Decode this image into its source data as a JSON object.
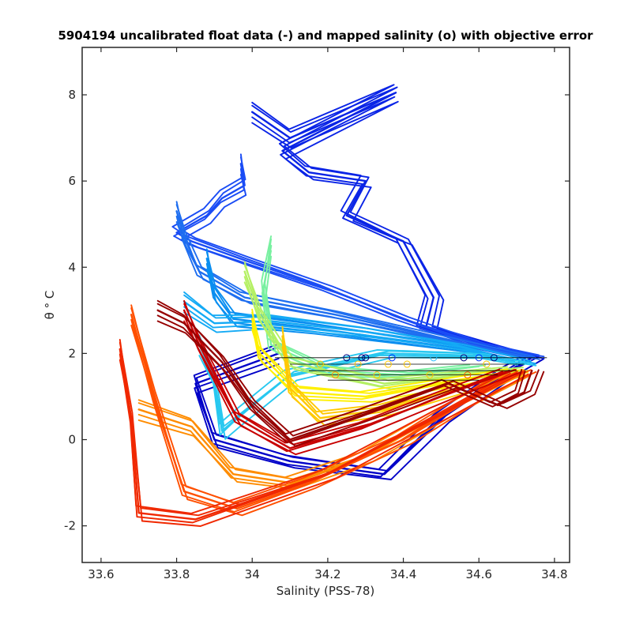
{
  "chart_data": {
    "type": "line",
    "title": "5904194 uncalibrated float data (-) and mapped salinity (o) with objective error",
    "xlabel": "Salinity (PSS-78)",
    "ylabel": "θ ° C",
    "xlim": [
      33.55,
      34.84
    ],
    "ylim": [
      -2.85,
      9.1
    ],
    "x_ticks": [
      "33.6",
      "33.8",
      "34",
      "34.2",
      "34.4",
      "34.6",
      "34.8"
    ],
    "x_tick_values": [
      33.6,
      33.8,
      34.0,
      34.2,
      34.4,
      34.6,
      34.8
    ],
    "y_ticks": [
      "-2",
      "0",
      "2",
      "4",
      "6",
      "8"
    ],
    "y_tick_values": [
      -2,
      0,
      2,
      4,
      6,
      8
    ],
    "grid": false,
    "legend": "none",
    "series": [
      {
        "color": "#0000c8",
        "points": [
          [
            34.07,
            2.0
          ],
          [
            33.85,
            1.3
          ],
          [
            33.9,
            0.0
          ],
          [
            34.1,
            -0.5
          ],
          [
            34.35,
            -0.8
          ],
          [
            34.5,
            0.5
          ],
          [
            34.68,
            1.6
          ],
          [
            34.74,
            1.9
          ]
        ]
      },
      {
        "color": "#0a24e6",
        "points": [
          [
            34.0,
            7.6
          ],
          [
            34.1,
            7.0
          ],
          [
            34.38,
            8.05
          ],
          [
            34.08,
            6.7
          ],
          [
            34.15,
            6.2
          ],
          [
            34.3,
            6.0
          ],
          [
            34.25,
            5.2
          ],
          [
            34.35,
            4.8
          ],
          [
            34.4,
            4.6
          ],
          [
            34.48,
            3.3
          ],
          [
            34.46,
            2.6
          ],
          [
            34.74,
            1.9
          ]
        ]
      },
      {
        "color": "#1a4cf5",
        "points": [
          [
            33.97,
            6.4
          ],
          [
            33.98,
            5.9
          ],
          [
            33.92,
            5.6
          ],
          [
            33.88,
            5.2
          ],
          [
            33.8,
            4.8
          ],
          [
            33.84,
            4.6
          ],
          [
            34.0,
            4.1
          ],
          [
            34.2,
            3.5
          ],
          [
            34.4,
            2.8
          ],
          [
            34.6,
            2.2
          ],
          [
            34.74,
            1.95
          ]
        ]
      },
      {
        "color": "#1e6ef0",
        "points": [
          [
            33.8,
            5.3
          ],
          [
            33.82,
            4.7
          ],
          [
            33.86,
            3.9
          ],
          [
            33.98,
            3.3
          ],
          [
            34.22,
            2.9
          ],
          [
            34.5,
            2.35
          ],
          [
            34.73,
            1.9
          ]
        ]
      },
      {
        "color": "#0a8ef0",
        "points": [
          [
            33.88,
            4.2
          ],
          [
            33.9,
            3.4
          ],
          [
            33.95,
            2.8
          ],
          [
            34.15,
            2.6
          ],
          [
            34.4,
            2.3
          ],
          [
            34.6,
            2.05
          ],
          [
            34.72,
            1.8
          ]
        ]
      },
      {
        "color": "#14aaf5",
        "points": [
          [
            33.82,
            3.2
          ],
          [
            33.9,
            2.7
          ],
          [
            34.05,
            2.75
          ],
          [
            34.3,
            2.5
          ],
          [
            34.55,
            2.15
          ],
          [
            34.72,
            1.8
          ]
        ]
      },
      {
        "color": "#28c8f0",
        "points": [
          [
            33.86,
            2.2
          ],
          [
            33.9,
            1.4
          ],
          [
            33.92,
            0.2
          ],
          [
            33.96,
            0.5
          ],
          [
            34.1,
            1.5
          ],
          [
            34.35,
            2.0
          ],
          [
            34.6,
            1.95
          ],
          [
            34.72,
            1.75
          ]
        ]
      },
      {
        "color": "#78f0a0",
        "points": [
          [
            34.05,
            4.5
          ],
          [
            34.03,
            3.5
          ],
          [
            34.05,
            2.2
          ],
          [
            34.2,
            1.6
          ],
          [
            34.4,
            1.5
          ],
          [
            34.6,
            1.7
          ]
        ]
      },
      {
        "color": "#b4f064",
        "points": [
          [
            33.98,
            3.9
          ],
          [
            34.02,
            2.9
          ],
          [
            34.1,
            1.8
          ],
          [
            34.35,
            1.3
          ],
          [
            34.55,
            1.5
          ],
          [
            34.7,
            1.65
          ]
        ]
      },
      {
        "color": "#fff000",
        "points": [
          [
            34.0,
            2.8
          ],
          [
            34.02,
            2.0
          ],
          [
            34.12,
            1.1
          ],
          [
            34.3,
            1.0
          ],
          [
            34.5,
            1.3
          ],
          [
            34.7,
            1.6
          ]
        ]
      },
      {
        "color": "#ffc800",
        "points": [
          [
            34.08,
            2.4
          ],
          [
            34.1,
            1.2
          ],
          [
            34.18,
            0.5
          ],
          [
            34.35,
            0.7
          ],
          [
            34.55,
            1.2
          ],
          [
            34.7,
            1.55
          ]
        ]
      },
      {
        "color": "#ff8c00",
        "points": [
          [
            33.7,
            0.7
          ],
          [
            33.84,
            0.3
          ],
          [
            33.95,
            -0.8
          ],
          [
            34.1,
            -1.0
          ],
          [
            34.3,
            -0.4
          ],
          [
            34.5,
            0.6
          ],
          [
            34.7,
            1.5
          ]
        ]
      },
      {
        "color": "#ff5000",
        "points": [
          [
            33.68,
            2.9
          ],
          [
            33.74,
            1.0
          ],
          [
            33.82,
            -1.2
          ],
          [
            33.96,
            -1.6
          ],
          [
            34.15,
            -1.0
          ],
          [
            34.4,
            0.0
          ],
          [
            34.62,
            1.2
          ],
          [
            34.72,
            1.6
          ]
        ]
      },
      {
        "color": "#f02800",
        "points": [
          [
            33.65,
            2.1
          ],
          [
            33.68,
            0.5
          ],
          [
            33.7,
            -1.7
          ],
          [
            33.85,
            -1.85
          ],
          [
            34.0,
            -1.4
          ],
          [
            34.2,
            -0.8
          ],
          [
            34.5,
            0.6
          ],
          [
            34.7,
            1.55
          ]
        ]
      },
      {
        "color": "#c80000",
        "points": [
          [
            33.82,
            3.0
          ],
          [
            33.86,
            2.2
          ],
          [
            33.96,
            0.5
          ],
          [
            34.1,
            -0.2
          ],
          [
            34.3,
            0.3
          ],
          [
            34.5,
            1.0
          ],
          [
            34.68,
            1.6
          ]
        ]
      },
      {
        "color": "#960000",
        "points": [
          [
            33.75,
            3.0
          ],
          [
            33.82,
            2.7
          ],
          [
            33.92,
            1.8
          ],
          [
            34.0,
            0.8
          ],
          [
            34.1,
            0.0
          ],
          [
            34.3,
            0.6
          ],
          [
            34.52,
            1.3
          ],
          [
            34.65,
            0.8
          ],
          [
            34.72,
            1.1
          ],
          [
            34.74,
            1.6
          ]
        ]
      }
    ],
    "mapped_points": [
      {
        "x": 34.25,
        "y": 1.9,
        "color": "#000080"
      },
      {
        "x": 34.29,
        "y": 1.9,
        "color": "#000080"
      },
      {
        "x": 34.3,
        "y": 1.9,
        "color": "#000080"
      },
      {
        "x": 34.37,
        "y": 1.9,
        "color": "#0030ff"
      },
      {
        "x": 34.48,
        "y": 1.9,
        "color": "#30c0ff"
      },
      {
        "x": 34.56,
        "y": 1.9,
        "color": "#000080"
      },
      {
        "x": 34.6,
        "y": 1.9,
        "color": "#0030ff"
      },
      {
        "x": 34.64,
        "y": 1.9,
        "color": "#000080"
      },
      {
        "x": 34.18,
        "y": 1.75,
        "color": "#ffc800"
      },
      {
        "x": 34.28,
        "y": 1.75,
        "color": "#ffc800"
      },
      {
        "x": 34.36,
        "y": 1.75,
        "color": "#ffc800"
      },
      {
        "x": 34.41,
        "y": 1.75,
        "color": "#ffc800"
      },
      {
        "x": 34.62,
        "y": 1.75,
        "color": "#ffc800"
      },
      {
        "x": 34.22,
        "y": 1.5,
        "color": "#ff8c00"
      },
      {
        "x": 34.33,
        "y": 1.5,
        "color": "#ffc800"
      },
      {
        "x": 34.47,
        "y": 1.5,
        "color": "#ffc800"
      },
      {
        "x": 34.57,
        "y": 1.5,
        "color": "#ff5000"
      }
    ],
    "error_bars": [
      {
        "y": 1.9,
        "x_min": 34.06,
        "x_max": 34.78
      },
      {
        "y": 1.75,
        "x_min": 34.1,
        "x_max": 34.72
      },
      {
        "y": 1.6,
        "x_min": 34.15,
        "x_max": 34.7
      },
      {
        "y": 1.5,
        "x_min": 34.17,
        "x_max": 34.65
      },
      {
        "y": 1.38,
        "x_min": 34.2,
        "x_max": 34.6
      }
    ]
  }
}
